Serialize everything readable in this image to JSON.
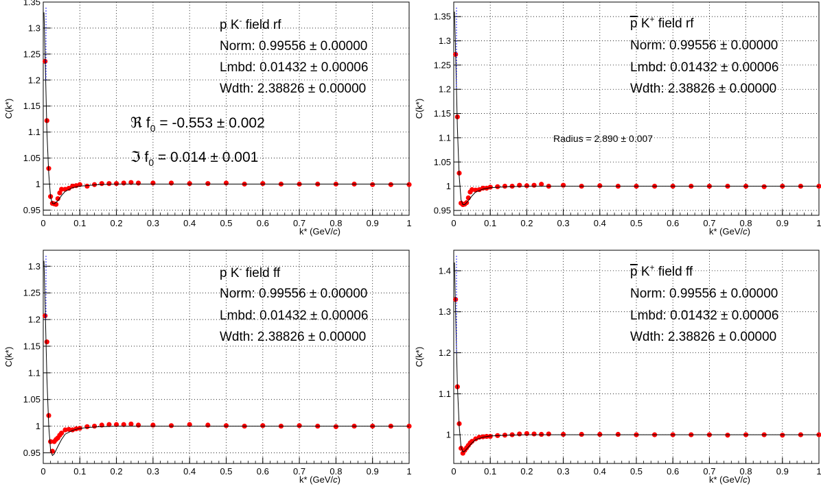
{
  "chart_data": [
    {
      "type": "scatter",
      "title_parts": [
        "p K",
        "-",
        " field rf"
      ],
      "params": [
        {
          "text": "Norm: 0.99556 ± 0.00000"
        },
        {
          "text": "Lmbd: 0.01432 ± 0.00006"
        },
        {
          "text": "Wdth: 2.38826 ± 0.00000"
        }
      ],
      "annotations": [
        "ℜ f",
        "0",
        " = -0.553 ± 0.002",
        "ℑ f",
        "0",
        " = 0.014 ± 0.001"
      ],
      "xlabel": "k* (GeV/c)",
      "ylabel": "C(k*)",
      "xlim": [
        0,
        1
      ],
      "ylim": [
        0.94,
        1.35
      ],
      "xticks": [
        "0",
        "0.1",
        "0.2",
        "0.3",
        "0.4",
        "0.5",
        "0.6",
        "0.7",
        "0.8",
        "0.9",
        "1"
      ],
      "yticks": [
        "0.95",
        "1",
        "1.05",
        "1.1",
        "1.15",
        "1.2",
        "1.25",
        "1.3",
        "1.35"
      ],
      "grid": true,
      "series": [
        {
          "color": "#ff0000",
          "x": [
            0.005,
            0.01,
            0.015,
            0.02,
            0.025,
            0.03,
            0.035,
            0.04,
            0.045,
            0.05,
            0.06,
            0.07,
            0.08,
            0.09,
            0.1,
            0.12,
            0.14,
            0.16,
            0.18,
            0.2,
            0.22,
            0.24,
            0.26,
            0.3,
            0.35,
            0.4,
            0.45,
            0.5,
            0.55,
            0.6,
            0.65,
            0.7,
            0.75,
            0.8,
            0.85,
            0.9,
            0.95,
            1.0
          ],
          "y": [
            1.236,
            1.122,
            1.03,
            0.976,
            0.963,
            0.962,
            0.961,
            0.972,
            0.983,
            0.99,
            0.99,
            0.992,
            0.996,
            0.997,
            0.999,
            0.996,
            0.999,
            1.001,
            1.001,
            1.001,
            1.002,
            1.003,
            1.002,
            1.002,
            1.002,
            1.001,
            1.001,
            1.002,
            1.0,
            1.001,
            1.0,
            1.0,
            1.0,
            1.0,
            1.0,
            0.999,
            0.999,
            0.999
          ]
        },
        {
          "color": "#000000",
          "fit": true,
          "x": [
            0.002,
            0.005,
            0.01,
            0.015,
            0.02,
            0.025,
            0.03,
            0.04,
            0.05,
            0.06,
            0.08,
            0.1,
            0.15,
            0.2,
            0.3,
            0.5,
            0.7,
            1.0
          ],
          "y": [
            1.33,
            1.25,
            1.1,
            1.02,
            0.975,
            0.963,
            0.962,
            0.968,
            0.978,
            0.986,
            0.993,
            0.996,
            0.999,
            1.0,
            1.0,
            1.0,
            1.0,
            1.0
          ]
        }
      ]
    },
    {
      "type": "scatter",
      "title_parts": [
        "p",
        "̅",
        " K",
        "+",
        " field rf"
      ],
      "params": [
        {
          "text": "Norm: 0.99556 ± 0.00000"
        },
        {
          "text": "Lmbd: 0.01432 ± 0.00006"
        },
        {
          "text": "Wdth: 2.38826 ± 0.00000"
        }
      ],
      "annotations": [
        "Radius = 2.890 ± 0.007"
      ],
      "xlabel": "k* (GeV/c)",
      "ylabel": "C(k*)",
      "xlim": [
        0,
        1
      ],
      "ylim": [
        0.94,
        1.38
      ],
      "xticks": [
        "0",
        "0.1",
        "0.2",
        "0.3",
        "0.4",
        "0.5",
        "0.6",
        "0.7",
        "0.8",
        "0.9",
        "1"
      ],
      "yticks": [
        "0.95",
        "1",
        "1.05",
        "1.1",
        "1.15",
        "1.2",
        "1.25",
        "1.3",
        "1.35"
      ],
      "grid": true,
      "series": [
        {
          "color": "#ff0000",
          "x": [
            0.005,
            0.01,
            0.015,
            0.02,
            0.025,
            0.03,
            0.035,
            0.04,
            0.045,
            0.05,
            0.06,
            0.07,
            0.08,
            0.09,
            0.1,
            0.12,
            0.14,
            0.16,
            0.18,
            0.2,
            0.22,
            0.24,
            0.26,
            0.3,
            0.35,
            0.4,
            0.45,
            0.5,
            0.55,
            0.6,
            0.65,
            0.7,
            0.75,
            0.8,
            0.85,
            0.9,
            0.95,
            1.0
          ],
          "y": [
            1.272,
            1.143,
            1.027,
            0.965,
            0.962,
            0.963,
            0.966,
            0.976,
            0.988,
            0.993,
            0.992,
            0.993,
            0.996,
            0.996,
            0.998,
            0.999,
            1.0,
            1.0,
            1.002,
            1.001,
            1.002,
            1.004,
            1.0,
            1.002,
            1.0,
            1.001,
            1.0,
            1.0,
            1.0,
            1.0,
            1.0,
            1.0,
            1.0,
            1.0,
            0.999,
            1.0,
            1.0,
            1.0
          ]
        },
        {
          "color": "#000000",
          "fit": true,
          "x": [
            0.002,
            0.005,
            0.01,
            0.015,
            0.02,
            0.025,
            0.03,
            0.04,
            0.05,
            0.06,
            0.08,
            0.1,
            0.15,
            0.2,
            0.3,
            0.5,
            0.7,
            1.0
          ],
          "y": [
            1.36,
            1.28,
            1.12,
            1.02,
            0.972,
            0.962,
            0.962,
            0.97,
            0.98,
            0.988,
            0.994,
            0.997,
            0.999,
            1.0,
            1.0,
            1.0,
            1.0,
            1.0
          ]
        }
      ]
    },
    {
      "type": "scatter",
      "title_parts": [
        "p K",
        "-",
        " field ff"
      ],
      "params": [
        {
          "text": "Norm: 0.99556 ± 0.00000"
        },
        {
          "text": "Lmbd: 0.01432 ± 0.00006"
        },
        {
          "text": "Wdth: 2.38826 ± 0.00000"
        }
      ],
      "annotations": [],
      "xlabel": "k* (GeV/c)",
      "ylabel": "C(k*)",
      "xlim": [
        0,
        1
      ],
      "ylim": [
        0.93,
        1.33
      ],
      "xticks": [
        "0",
        "0.1",
        "0.2",
        "0.3",
        "0.4",
        "0.5",
        "0.6",
        "0.7",
        "0.8",
        "0.9",
        "1"
      ],
      "yticks": [
        "0.95",
        "1",
        "1.05",
        "1.1",
        "1.15",
        "1.2",
        "1.25",
        "1.3"
      ],
      "grid": true,
      "series": [
        {
          "color": "#ff0000",
          "x": [
            0.005,
            0.01,
            0.015,
            0.02,
            0.025,
            0.03,
            0.035,
            0.04,
            0.045,
            0.05,
            0.06,
            0.07,
            0.08,
            0.09,
            0.1,
            0.12,
            0.14,
            0.16,
            0.18,
            0.2,
            0.22,
            0.24,
            0.26,
            0.3,
            0.35,
            0.4,
            0.45,
            0.5,
            0.55,
            0.6,
            0.65,
            0.7,
            0.75,
            0.8,
            0.85,
            0.9,
            0.95,
            1.0
          ],
          "y": [
            1.207,
            1.158,
            1.02,
            0.971,
            0.953,
            0.971,
            0.975,
            0.978,
            0.983,
            0.987,
            0.993,
            0.994,
            0.993,
            0.995,
            0.996,
            0.999,
            1.0,
            1.002,
            1.003,
            1.003,
            1.003,
            1.004,
            1.002,
            1.002,
            1.001,
            1.003,
            1.002,
            1.001,
            1.0,
            1.001,
            1.0,
            1.001,
            1.0,
            0.999,
            1.0,
            1.0,
            1.0,
            1.0
          ]
        },
        {
          "color": "#000000",
          "fit": true,
          "x": [
            0.002,
            0.005,
            0.01,
            0.015,
            0.02,
            0.025,
            0.03,
            0.04,
            0.05,
            0.06,
            0.08,
            0.1,
            0.15,
            0.2,
            0.3,
            0.5,
            0.7,
            1.0
          ],
          "y": [
            1.31,
            1.23,
            1.09,
            1.0,
            0.955,
            0.945,
            0.948,
            0.962,
            0.975,
            0.985,
            0.992,
            0.996,
            0.999,
            1.0,
            1.0,
            1.0,
            1.0,
            1.0
          ]
        }
      ]
    },
    {
      "type": "scatter",
      "title_parts": [
        "p",
        "̅",
        " K",
        "+",
        " field ff"
      ],
      "params": [
        {
          "text": "Norm: 0.99556 ± 0.00000"
        },
        {
          "text": "Lmbd: 0.01432 ± 0.00006"
        },
        {
          "text": "Wdth: 2.38826 ± 0.00000"
        }
      ],
      "annotations": [],
      "xlabel": "k* (GeV/c)",
      "ylabel": "C(k*)",
      "xlim": [
        0,
        1
      ],
      "ylim": [
        0.93,
        1.45
      ],
      "xticks": [
        "0",
        "0.1",
        "0.2",
        "0.3",
        "0.4",
        "0.5",
        "0.6",
        "0.7",
        "0.8",
        "0.9",
        "1"
      ],
      "yticks": [
        "1",
        "1.1",
        "1.2",
        "1.3",
        "1.4"
      ],
      "grid": true,
      "series": [
        {
          "color": "#ff0000",
          "x": [
            0.005,
            0.01,
            0.015,
            0.02,
            0.025,
            0.03,
            0.035,
            0.04,
            0.045,
            0.05,
            0.06,
            0.07,
            0.08,
            0.09,
            0.1,
            0.12,
            0.14,
            0.16,
            0.18,
            0.2,
            0.22,
            0.24,
            0.26,
            0.3,
            0.35,
            0.4,
            0.45,
            0.5,
            0.55,
            0.6,
            0.65,
            0.7,
            0.75,
            0.8,
            0.85,
            0.9,
            0.95,
            1.0
          ],
          "y": [
            1.33,
            1.117,
            1.027,
            0.967,
            0.955,
            0.962,
            0.968,
            0.974,
            0.98,
            0.984,
            0.99,
            0.994,
            0.995,
            0.996,
            0.996,
            0.998,
            0.999,
            1.0,
            1.002,
            1.003,
            1.002,
            1.001,
            1.002,
            1.001,
            1.001,
            1.001,
            1.001,
            1.0,
            1.0,
            1.0,
            1.0,
            1.0,
            0.999,
            1.0,
            1.0,
            0.999,
            1.0,
            1.0
          ]
        },
        {
          "color": "#000000",
          "fit": true,
          "x": [
            0.002,
            0.005,
            0.01,
            0.015,
            0.02,
            0.025,
            0.03,
            0.04,
            0.05,
            0.06,
            0.08,
            0.1,
            0.15,
            0.2,
            0.3,
            0.5,
            0.7,
            1.0
          ],
          "y": [
            1.42,
            1.3,
            1.12,
            1.02,
            0.97,
            0.958,
            0.96,
            0.97,
            0.98,
            0.988,
            0.994,
            0.997,
            0.999,
            1.0,
            1.0,
            1.0,
            1.0,
            1.0
          ]
        }
      ]
    }
  ]
}
